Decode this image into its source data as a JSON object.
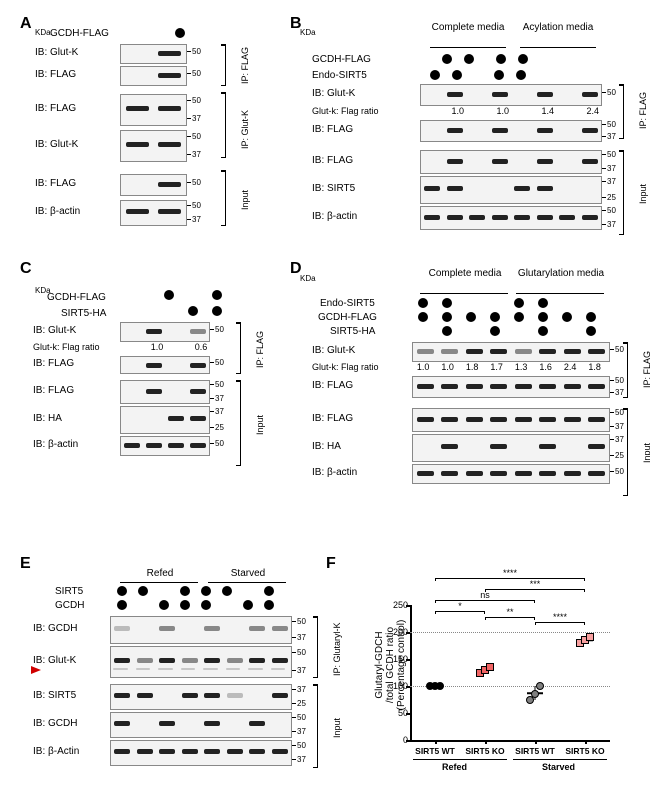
{
  "letters": {
    "A": "A",
    "B": "B",
    "C": "C",
    "D": "D",
    "E": "E",
    "F": "F"
  },
  "mw_unit": "KDa",
  "panelA": {
    "construct": "GCDH-FLAG",
    "rows": [
      {
        "label": "IB: Glut-K",
        "group": "IP: FLAG",
        "mw": [
          "50"
        ]
      },
      {
        "label": "IB: FLAG",
        "group": "IP: FLAG",
        "mw": [
          "50"
        ]
      },
      {
        "label": "IB: FLAG",
        "group": "IP: Glut-K",
        "mw": [
          "50",
          "37"
        ]
      },
      {
        "label": "IB: Glut-K",
        "group": "IP: Glut-K",
        "mw": [
          "50",
          "37"
        ]
      },
      {
        "label": "IB: FLAG",
        "group": "Input",
        "mw": [
          "50"
        ]
      },
      {
        "label": "IB: β-actin",
        "group": "Input",
        "mw": [
          "50",
          "37"
        ]
      }
    ],
    "groups": [
      "IP: FLAG",
      "IP: Glut-K",
      "Input"
    ]
  },
  "panelB": {
    "header1": "Complete media",
    "header2": "Acylation media",
    "constructs": [
      "GCDH-FLAG",
      "Endo-SIRT5"
    ],
    "rows": [
      {
        "label": "IB: Glut-K",
        "group": "IP: FLAG",
        "mw": [
          "50"
        ]
      },
      {
        "label": "Glut-k: Flag ratio",
        "values": [
          "1.0",
          "1.0",
          "1.4",
          "2.4"
        ]
      },
      {
        "label": "IB: FLAG",
        "group": "IP: FLAG",
        "mw": [
          "50",
          "37"
        ]
      },
      {
        "label": "IB: FLAG",
        "group": "Input",
        "mw": [
          "50",
          "37"
        ]
      },
      {
        "label": "IB: SIRT5",
        "group": "Input",
        "mw": [
          "37",
          "25"
        ]
      },
      {
        "label": "IB: β-actin",
        "group": "Input",
        "mw": [
          "50",
          "37"
        ]
      }
    ]
  },
  "panelC": {
    "constructs": [
      "GCDH-FLAG",
      "SIRT5-HA"
    ],
    "rows": [
      {
        "label": "IB: Glut-K",
        "group": "IP: FLAG",
        "mw": [
          "50"
        ]
      },
      {
        "label": "Glut-k: Flag ratio",
        "values": [
          "1.0",
          "0.6"
        ]
      },
      {
        "label": "IB: FLAG",
        "group": "IP: FLAG",
        "mw": [
          "50"
        ]
      },
      {
        "label": "IB: FLAG",
        "group": "Input",
        "mw": [
          "50",
          "37"
        ]
      },
      {
        "label": "IB: HA",
        "group": "Input",
        "mw": [
          "37",
          "25"
        ]
      },
      {
        "label": "IB: β-actin",
        "group": "Input",
        "mw": [
          "50"
        ]
      }
    ]
  },
  "panelD": {
    "header1": "Complete media",
    "header2": "Glutarylation media",
    "constructs": [
      "Endo-SIRT5",
      "GCDH-FLAG",
      "SIRT5-HA"
    ],
    "rows": [
      {
        "label": "IB: Glut-K",
        "group": "IP: FLAG",
        "mw": [
          "50"
        ]
      },
      {
        "label": "Glut-k: Flag ratio",
        "values": [
          "1.0",
          "1.0",
          "1.8",
          "1.7",
          "1.3",
          "1.6",
          "2.4",
          "1.8"
        ]
      },
      {
        "label": "IB: FLAG",
        "group": "IP: FLAG",
        "mw": [
          "50",
          "37"
        ]
      },
      {
        "label": "IB: FLAG",
        "group": "Input",
        "mw": [
          "50",
          "37"
        ]
      },
      {
        "label": "IB: HA",
        "group": "Input",
        "mw": [
          "37",
          "25"
        ]
      },
      {
        "label": "IB: β-actin",
        "group": "Input",
        "mw": [
          "50"
        ]
      }
    ]
  },
  "panelE": {
    "header1": "Refed",
    "header2": "Starved",
    "constructs": [
      "SIRT5",
      "GCDH"
    ],
    "rows": [
      {
        "label": "IB: GCDH",
        "group": "IP: Glutaryl-K",
        "mw": [
          "50",
          "37"
        ]
      },
      {
        "label": "IB: Glut-K",
        "group": "IP: Glutaryl-K",
        "mw": [
          "50",
          "37"
        ]
      },
      {
        "label": "IB: SIRT5",
        "group": "Input",
        "mw": [
          "37",
          "25"
        ]
      },
      {
        "label": "IB: GCDH",
        "group": "Input",
        "mw": [
          "50",
          "37"
        ]
      },
      {
        "label": "IB: β-Actin",
        "group": "Input",
        "mw": [
          "50",
          "37"
        ]
      }
    ]
  },
  "panelF": {
    "ylabel": "Glutaryl-GDCH\n/total GCDH ratio\n(Percentage control)",
    "yticks": [
      0,
      50,
      100,
      150,
      200,
      250
    ],
    "ymax": 250,
    "ref_lines": [
      100,
      200
    ],
    "groups": [
      {
        "label": "SIRT5 WT",
        "cond": "Refed",
        "color": "g1",
        "shape": "ci",
        "values": [
          100,
          100,
          100
        ]
      },
      {
        "label": "SIRT5 KO",
        "cond": "Refed",
        "color": "g2",
        "shape": "sq",
        "values": [
          125,
          130,
          135
        ]
      },
      {
        "label": "SIRT5 WT",
        "cond": "Starved",
        "color": "g3",
        "shape": "ci",
        "values": [
          75,
          85,
          100
        ]
      },
      {
        "label": "SIRT5 KO",
        "cond": "Starved",
        "color": "g4",
        "shape": "sq",
        "values": [
          180,
          185,
          190
        ]
      }
    ],
    "conds": [
      "Refed",
      "Starved"
    ],
    "sig": [
      {
        "from": 0,
        "to": 1,
        "label": "*",
        "level": 1
      },
      {
        "from": 0,
        "to": 2,
        "label": "ns",
        "level": 2
      },
      {
        "from": 1,
        "to": 3,
        "label": "***",
        "level": 3
      },
      {
        "from": 0,
        "to": 3,
        "label": "****",
        "level": 4
      },
      {
        "from": 2,
        "to": 3,
        "label": "****",
        "level": 0
      },
      {
        "from": 1,
        "to": 2,
        "label": "**",
        "level": 0.5
      }
    ]
  }
}
